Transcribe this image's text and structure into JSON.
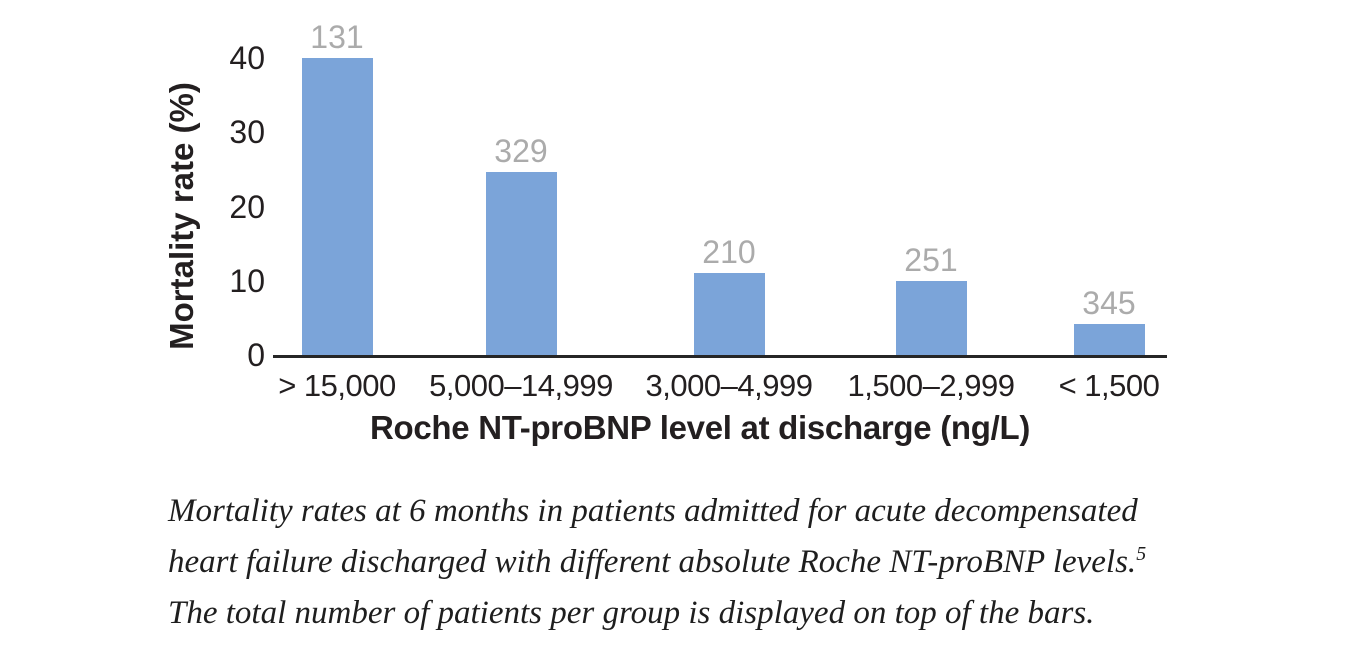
{
  "chart_data": {
    "type": "bar",
    "title": "",
    "ylabel": "Mortality rate (%)",
    "xlabel": "Roche NT-proBNP level at discharge (ng/L)",
    "categories": [
      "> 15,000",
      "5,000–14,999",
      "3,000–4,999",
      "1,500–2,999",
      "< 1,500"
    ],
    "values": [
      40,
      24.7,
      11.1,
      10,
      4.2
    ],
    "bar_top_labels": [
      "131",
      "329",
      "210",
      "251",
      "345"
    ],
    "ylim": [
      0,
      40
    ],
    "yticks": [
      0,
      10,
      20,
      30,
      40
    ],
    "grid": false,
    "legend": false,
    "colors": {
      "bar": "#7BA4D9",
      "bar_top_label": "#ABABAB",
      "axis_line": "#262626",
      "tick_text": "#231F20"
    }
  },
  "caption": {
    "lines": [
      "Mortality rates at 6 months in patients admitted for acute decompensated",
      "heart failure discharged with different absolute Roche NT-proBNP levels.",
      "The total number of patients per group is displayed on top of the bars."
    ],
    "reference_superscript": "5"
  }
}
